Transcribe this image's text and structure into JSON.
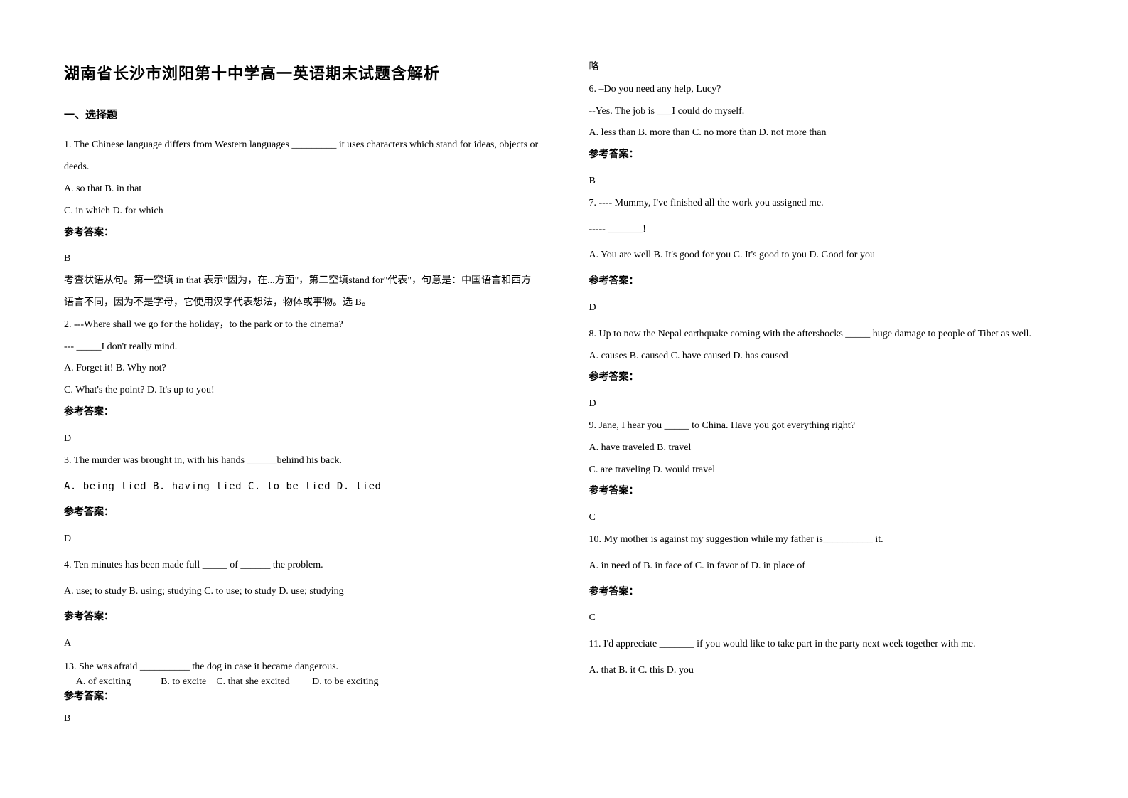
{
  "title": "湖南省长沙市浏阳第十中学高一英语期末试题含解析",
  "section1": "一、选择题",
  "answerLabel": "参考答案：",
  "lue": "略",
  "q1": {
    "stem": "1. The Chinese language differs from Western languages _________ it uses characters which stand for ideas, objects or deeds.",
    "optA": "A. so that    B. in that",
    "optB": "C. in which    D. for which",
    "ans": "B",
    "expl": "考查状语从句。第一空填 in that 表示\"因为，在...方面\"，第二空填stand for\"代表\"，句意是：中国语言和西方语言不同，因为不是字母，它使用汉字代表想法，物体或事物。选 B。"
  },
  "q2": {
    "stem": "2. ---Where shall we go for the holiday，to the park or to the cinema?",
    "stem2": "--- _____I don't really mind.",
    "optA": "A. Forget it!         B. Why not?",
    "optB": "C. What's the point?     D. It's up to you!",
    "ans": "D"
  },
  "q3": {
    "stem": "3. The murder was brought in, with his hands ______behind his back.",
    "opts": "A. being tied        B. having tied      C. to be tied             D. tied",
    "ans": "D"
  },
  "q4": {
    "stem": "4. Ten minutes has been made full _____ of ______ the problem.",
    "opts": "A. use; to study   B. using; studying   C. to use; to study    D. use; studying",
    "ans": "A"
  },
  "q13": {
    "stem": "13. She was afraid __________ the dog in case it became dangerous.",
    "opts": "     A. of exciting            B. to excite    C. that she excited         D. to be exciting",
    "ans": "B"
  },
  "q6": {
    "stem": "6. –Do you need any help, Lucy?",
    "stem2": "--Yes. The job is ___I could do myself.",
    "opts": "A. less than               B. more than               C. no more than                      D. not more than",
    "ans": "B"
  },
  "q7": {
    "stem": "7. ---- Mummy, I've finished all the work you assigned me.",
    "stem2": "----- _______!",
    "opts": "A. You are well      B. It's good for you    C. It's good to you   D. Good for you",
    "ans": "D"
  },
  "q8": {
    "stem": "8. Up to now the Nepal earthquake coming with the aftershocks _____ huge damage to people of Tibet as well.",
    "opts": "A. causes                                        B. caused                                        C. have caused            D. has caused",
    "ans": "D"
  },
  "q9": {
    "stem": "9. Jane, I hear you _____ to China. Have you got everything right?",
    "optA": "A. have traveled                            B. travel",
    "optB": "C. are traveling                             D. would travel",
    "ans": "C"
  },
  "q10": {
    "stem": "10. My mother is against my suggestion while my father is__________ it.",
    "opts": "A. in need of    B. in face of    C. in favor of   D. in place of",
    "ans": "C"
  },
  "q11": {
    "stem": "11. I'd appreciate _______ if you would like to take part in the party next week together with me.",
    "opts": "A. that       B. it        C. this       D. you"
  }
}
